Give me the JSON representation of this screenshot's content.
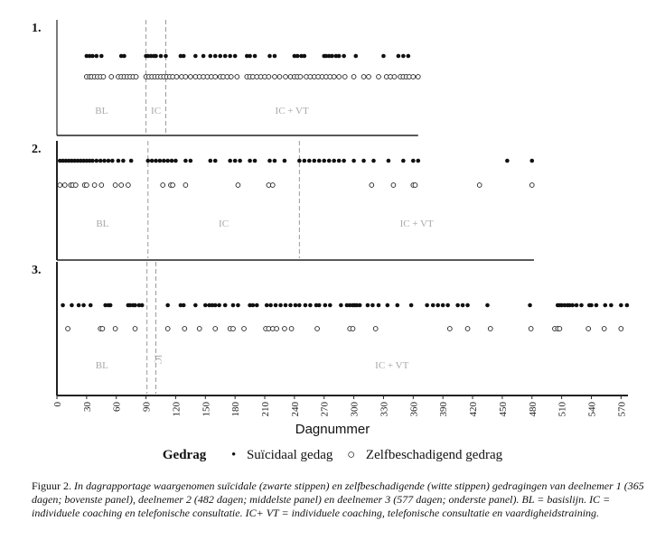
{
  "chart_data": {
    "type": "scatter",
    "panels": [
      {
        "number": "1.",
        "days": 365,
        "phase_boundaries": [
          90,
          110
        ],
        "phase_labels": [
          "BL",
          "IC",
          "IC + VT"
        ],
        "black": [
          30,
          33,
          36,
          40,
          45,
          65,
          68,
          90,
          92,
          95,
          98,
          100,
          105,
          110,
          125,
          128,
          140,
          148,
          155,
          160,
          165,
          170,
          175,
          180,
          192,
          195,
          200,
          215,
          220,
          240,
          243,
          247,
          250,
          270,
          272,
          275,
          278,
          282,
          285,
          290,
          302,
          330,
          345,
          350,
          355
        ],
        "white": [
          30,
          33,
          35,
          38,
          41,
          44,
          47,
          55,
          62,
          65,
          68,
          71,
          74,
          77,
          80,
          90,
          93,
          96,
          99,
          102,
          105,
          108,
          111,
          114,
          117,
          121,
          126,
          130,
          135,
          140,
          144,
          148,
          152,
          156,
          160,
          165,
          168,
          172,
          176,
          182,
          192,
          195,
          198,
          202,
          206,
          210,
          214,
          220,
          225,
          231,
          236,
          240,
          243,
          246,
          252,
          256,
          260,
          264,
          268,
          272,
          276,
          280,
          285,
          291,
          300,
          310,
          315,
          325,
          333,
          337,
          341,
          347,
          350,
          353,
          356,
          360,
          365
        ]
      },
      {
        "number": "2.",
        "days": 482,
        "phase_boundaries": [
          92,
          245
        ],
        "phase_labels": [
          "BL",
          "IC",
          "IC + VT"
        ],
        "black": [
          3,
          6,
          9,
          12,
          15,
          18,
          21,
          24,
          27,
          30,
          33,
          36,
          40,
          44,
          48,
          52,
          56,
          62,
          67,
          75,
          92,
          96,
          100,
          104,
          108,
          112,
          116,
          120,
          130,
          135,
          155,
          160,
          175,
          180,
          185,
          195,
          200,
          215,
          220,
          230,
          245,
          250,
          255,
          260,
          265,
          270,
          275,
          280,
          285,
          290,
          300,
          310,
          320,
          335,
          350,
          360,
          365,
          455,
          480
        ],
        "white": [
          3,
          8,
          14,
          16,
          19,
          28,
          30,
          38,
          45,
          59,
          65,
          72,
          107,
          115,
          117,
          130,
          183,
          214,
          218,
          318,
          340,
          360,
          362,
          427,
          480
        ]
      },
      {
        "number": "3.",
        "days": 577,
        "phase_boundaries": [
          91,
          100
        ],
        "phase_labels": [
          "BL",
          "IC",
          "IC + VT"
        ],
        "black": [
          6,
          15,
          22,
          27,
          34,
          49,
          52,
          54,
          72,
          74,
          77,
          79,
          83,
          86,
          112,
          125,
          128,
          140,
          150,
          154,
          157,
          160,
          164,
          170,
          178,
          183,
          195,
          198,
          202,
          212,
          216,
          221,
          226,
          231,
          236,
          241,
          245,
          251,
          256,
          262,
          265,
          271,
          276,
          287,
          293,
          296,
          299,
          301,
          303,
          306,
          314,
          319,
          325,
          334,
          344,
          358,
          374,
          380,
          385,
          390,
          395,
          405,
          410,
          415,
          435,
          478,
          506,
          508,
          510,
          513,
          516,
          518,
          521,
          525,
          530,
          538,
          540,
          545,
          554,
          560,
          570,
          576
        ],
        "white": [
          11,
          44,
          46,
          59,
          79,
          112,
          129,
          144,
          160,
          175,
          178,
          189,
          211,
          214,
          218,
          222,
          230,
          237,
          263,
          296,
          299,
          322,
          397,
          415,
          438,
          479,
          503,
          506,
          508,
          537,
          553,
          570
        ]
      }
    ],
    "x_ticks": [
      0,
      30,
      60,
      90,
      120,
      150,
      180,
      210,
      240,
      270,
      300,
      330,
      360,
      390,
      420,
      450,
      480,
      510,
      540,
      570
    ],
    "xlabel": "Dagnummer",
    "legend": {
      "title": "Gedrag",
      "entries": [
        {
          "symbol": "•",
          "label": "Suïcidaal gedag",
          "color": "#111111"
        },
        {
          "symbol": "○",
          "label": "Zelfbeschadigend gedrag",
          "color": "#111111"
        }
      ]
    }
  },
  "caption": {
    "fig": "Figuur 2.",
    "text": "In dagrapportage waargenomen suïcidale (zwarte stippen) en zelfbeschadigende (witte stippen) gedragingen van deelnemer 1 (365 dagen; bovenste panel), deelnemer 2 (482 dagen; middelste panel) en deelnemer 3 (577 dagen; onderste panel). BL = basislijn. IC = individuele coaching en telefonische consultatie. IC+ VT = individuele coaching, telefonische consultatie en vaardigheidstraining."
  }
}
